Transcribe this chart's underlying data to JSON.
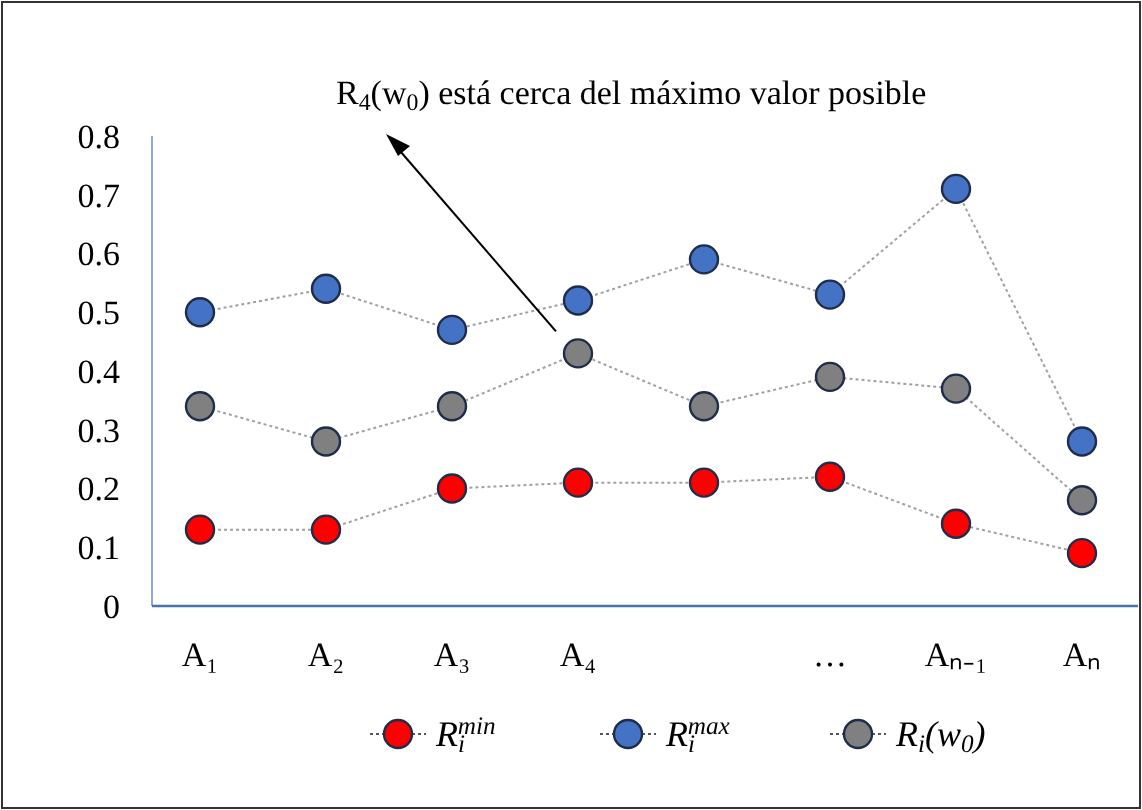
{
  "chart_data": {
    "type": "line",
    "categories": [
      "A₁",
      "A₂",
      "A₃",
      "A₄",
      null,
      "…",
      "Aₙ₋₁",
      "Aₙ"
    ],
    "series": [
      {
        "name": "R$_{i}$$^{min}$",
        "color": "#ff0000",
        "values": [
          0.13,
          0.13,
          0.2,
          0.21,
          0.21,
          0.22,
          0.14,
          0.09
        ]
      },
      {
        "name": "R$_{i}$$^{max}$",
        "color": "#4472c4",
        "values": [
          0.5,
          0.54,
          0.47,
          0.52,
          0.59,
          0.53,
          0.71,
          0.28
        ]
      },
      {
        "name": "R$_{i}$(w$_{0}$)",
        "color": "#808080",
        "values": [
          0.34,
          0.28,
          0.34,
          0.43,
          0.34,
          0.39,
          0.37,
          0.18
        ]
      }
    ],
    "ylim": [
      0,
      0.8
    ],
    "yticks": [
      0,
      0.1,
      0.2,
      0.3,
      0.4,
      0.5,
      0.6,
      0.7,
      0.8
    ],
    "grid": false,
    "legend": "bottom",
    "marker": "circle",
    "line_style": "dotted",
    "annotations": [
      "R$_{4}$(w$_{0}$) está cerca del máximo valor posible"
    ]
  }
}
